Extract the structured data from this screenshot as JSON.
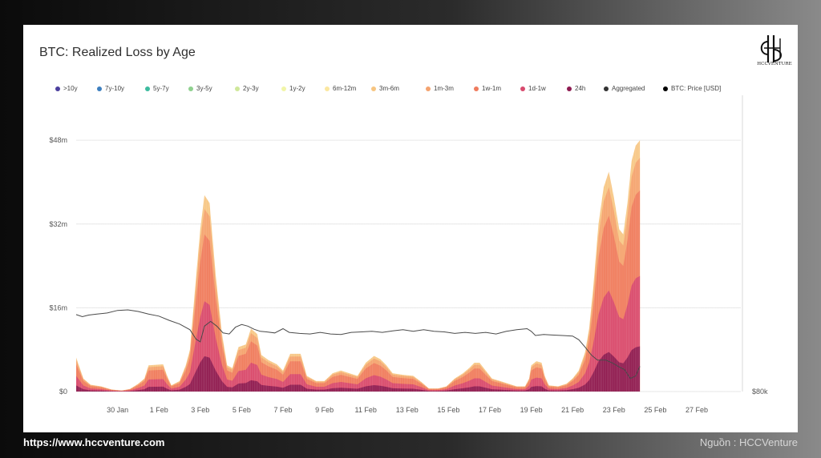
{
  "brand": {
    "logo_text": "HCCVENTURE",
    "url": "https://www.hccventure.com",
    "source": "Nguồn : HCCVenture"
  },
  "chart_data": {
    "type": "area",
    "title": "BTC: Realized Loss by Age",
    "xlabel": "",
    "ylabel": "",
    "ylim": [
      0,
      52000000
    ],
    "y_ticks": [
      {
        "value": 0,
        "label": "$0"
      },
      {
        "value": 16000000,
        "label": "$16m"
      },
      {
        "value": 32000000,
        "label": "$32m"
      },
      {
        "value": 48000000,
        "label": "$48m"
      }
    ],
    "y2_tick_label": "$80k",
    "x_ticks": [
      "30 Jan",
      "1 Feb",
      "3 Feb",
      "5 Feb",
      "7 Feb",
      "9 Feb",
      "11 Feb",
      "13 Feb",
      "15 Feb",
      "17 Feb",
      "19 Feb",
      "21 Feb",
      "23 Feb",
      "25 Feb",
      "27 Feb"
    ],
    "x_range": [
      "2025-01-28",
      "2025-02-27"
    ],
    "grid": true,
    "legend_position": "top",
    "legend": [
      {
        "name": ">10y",
        "color": "#4b3f9e"
      },
      {
        "name": "7y-10y",
        "color": "#3d7fbf"
      },
      {
        "name": "5y-7y",
        "color": "#3dbb9f"
      },
      {
        "name": "3y-5y",
        "color": "#8fd18f"
      },
      {
        "name": "2y-3y",
        "color": "#cfe89a"
      },
      {
        "name": "1y-2y",
        "color": "#f1f5a8"
      },
      {
        "name": "6m-12m",
        "color": "#fbe7a0"
      },
      {
        "name": "3m-6m",
        "color": "#f7c581"
      },
      {
        "name": "1m-3m",
        "color": "#f4a36f"
      },
      {
        "name": "1w-1m",
        "color": "#ef7b5e"
      },
      {
        "name": "1d-1w",
        "color": "#d84a6e"
      },
      {
        "name": "24h",
        "color": "#8e1b51"
      },
      {
        "name": "Aggregated",
        "color": "#333333"
      },
      {
        "name": "BTC: Price [USD]",
        "color": "#000000"
      }
    ],
    "aggregated_millions": [
      [
        0.0,
        6.5
      ],
      [
        0.35,
        2.5
      ],
      [
        0.7,
        1.3
      ],
      [
        1.2,
        1.0
      ],
      [
        1.7,
        0.4
      ],
      [
        2.2,
        0.2
      ],
      [
        2.6,
        0.5
      ],
      [
        3.0,
        1.5
      ],
      [
        3.3,
        2.5
      ],
      [
        3.5,
        5.0
      ],
      [
        4.2,
        5.2
      ],
      [
        4.4,
        3.0
      ],
      [
        4.6,
        1.2
      ],
      [
        5.0,
        2.0
      ],
      [
        5.3,
        5.0
      ],
      [
        5.5,
        8.0
      ],
      [
        5.8,
        22.0
      ],
      [
        6.0,
        31.0
      ],
      [
        6.2,
        37.5
      ],
      [
        6.45,
        36.0
      ],
      [
        6.75,
        22.0
      ],
      [
        7.05,
        11.0
      ],
      [
        7.3,
        5.0
      ],
      [
        7.55,
        4.5
      ],
      [
        7.85,
        8.5
      ],
      [
        8.2,
        9.0
      ],
      [
        8.45,
        12.0
      ],
      [
        8.75,
        11.0
      ],
      [
        8.95,
        7.0
      ],
      [
        9.3,
        6.0
      ],
      [
        9.7,
        5.2
      ],
      [
        10.0,
        4.0
      ],
      [
        10.35,
        7.2
      ],
      [
        10.85,
        7.2
      ],
      [
        11.15,
        3.0
      ],
      [
        11.6,
        2.0
      ],
      [
        12.0,
        2.0
      ],
      [
        12.4,
        3.5
      ],
      [
        12.8,
        4.0
      ],
      [
        13.2,
        3.5
      ],
      [
        13.6,
        3.0
      ],
      [
        14.0,
        5.5
      ],
      [
        14.4,
        6.8
      ],
      [
        14.7,
        6.2
      ],
      [
        15.0,
        5.0
      ],
      [
        15.3,
        3.5
      ],
      [
        15.8,
        3.2
      ],
      [
        16.3,
        3.0
      ],
      [
        16.7,
        1.8
      ],
      [
        17.05,
        0.6
      ],
      [
        17.5,
        0.6
      ],
      [
        17.9,
        1.0
      ],
      [
        18.3,
        2.5
      ],
      [
        18.7,
        3.5
      ],
      [
        19.0,
        4.5
      ],
      [
        19.25,
        5.5
      ],
      [
        19.5,
        5.5
      ],
      [
        19.8,
        4.0
      ],
      [
        20.1,
        2.5
      ],
      [
        20.5,
        2.0
      ],
      [
        20.9,
        1.5
      ],
      [
        21.3,
        1.0
      ],
      [
        21.7,
        1.0
      ],
      [
        21.9,
        2.5
      ],
      [
        22.0,
        5.0
      ],
      [
        22.25,
        5.8
      ],
      [
        22.5,
        5.5
      ],
      [
        22.65,
        3.0
      ],
      [
        22.85,
        1.2
      ],
      [
        23.3,
        1.0
      ],
      [
        23.7,
        1.5
      ],
      [
        24.0,
        2.5
      ],
      [
        24.3,
        4.0
      ],
      [
        24.6,
        7.5
      ],
      [
        24.8,
        12.0
      ],
      [
        25.0,
        20.0
      ],
      [
        25.25,
        32.0
      ],
      [
        25.5,
        39.0
      ],
      [
        25.75,
        42.0
      ],
      [
        26.0,
        37.0
      ],
      [
        26.25,
        31.0
      ],
      [
        26.45,
        30.0
      ],
      [
        26.65,
        36.0
      ],
      [
        26.85,
        44.0
      ],
      [
        27.05,
        47.0
      ],
      [
        27.25,
        48.0
      ]
    ],
    "price_relative": [
      [
        0.0,
        14.7
      ],
      [
        0.3,
        14.3
      ],
      [
        0.6,
        14.6
      ],
      [
        1.0,
        14.8
      ],
      [
        1.5,
        15.0
      ],
      [
        2.0,
        15.5
      ],
      [
        2.5,
        15.6
      ],
      [
        3.0,
        15.3
      ],
      [
        3.5,
        14.8
      ],
      [
        4.0,
        14.4
      ],
      [
        4.5,
        13.6
      ],
      [
        5.0,
        12.9
      ],
      [
        5.5,
        11.8
      ],
      [
        5.8,
        10.0
      ],
      [
        6.0,
        9.5
      ],
      [
        6.2,
        12.5
      ],
      [
        6.5,
        13.4
      ],
      [
        6.8,
        12.5
      ],
      [
        7.1,
        11.2
      ],
      [
        7.4,
        11.0
      ],
      [
        7.7,
        12.3
      ],
      [
        8.0,
        12.8
      ],
      [
        8.3,
        12.5
      ],
      [
        8.6,
        11.9
      ],
      [
        8.9,
        11.5
      ],
      [
        9.2,
        11.4
      ],
      [
        9.6,
        11.2
      ],
      [
        10.0,
        12.0
      ],
      [
        10.3,
        11.3
      ],
      [
        10.8,
        11.1
      ],
      [
        11.3,
        11.0
      ],
      [
        11.8,
        11.3
      ],
      [
        12.3,
        11.0
      ],
      [
        12.8,
        10.9
      ],
      [
        13.3,
        11.3
      ],
      [
        13.8,
        11.4
      ],
      [
        14.3,
        11.5
      ],
      [
        14.8,
        11.3
      ],
      [
        15.3,
        11.6
      ],
      [
        15.8,
        11.8
      ],
      [
        16.3,
        11.5
      ],
      [
        16.8,
        11.8
      ],
      [
        17.3,
        11.5
      ],
      [
        17.8,
        11.4
      ],
      [
        18.3,
        11.1
      ],
      [
        18.8,
        11.3
      ],
      [
        19.3,
        11.1
      ],
      [
        19.8,
        11.3
      ],
      [
        20.3,
        11.0
      ],
      [
        20.8,
        11.5
      ],
      [
        21.3,
        11.8
      ],
      [
        21.8,
        12.0
      ],
      [
        22.0,
        11.5
      ],
      [
        22.2,
        10.7
      ],
      [
        22.6,
        10.9
      ],
      [
        23.0,
        10.8
      ],
      [
        23.5,
        10.7
      ],
      [
        24.0,
        10.6
      ],
      [
        24.3,
        9.9
      ],
      [
        24.6,
        8.5
      ],
      [
        24.9,
        7.0
      ],
      [
        25.2,
        6.0
      ],
      [
        25.6,
        6.0
      ],
      [
        25.9,
        5.5
      ],
      [
        26.2,
        4.8
      ],
      [
        26.5,
        4.2
      ],
      [
        26.8,
        2.5
      ],
      [
        27.05,
        3.0
      ],
      [
        27.25,
        4.8
      ]
    ]
  }
}
